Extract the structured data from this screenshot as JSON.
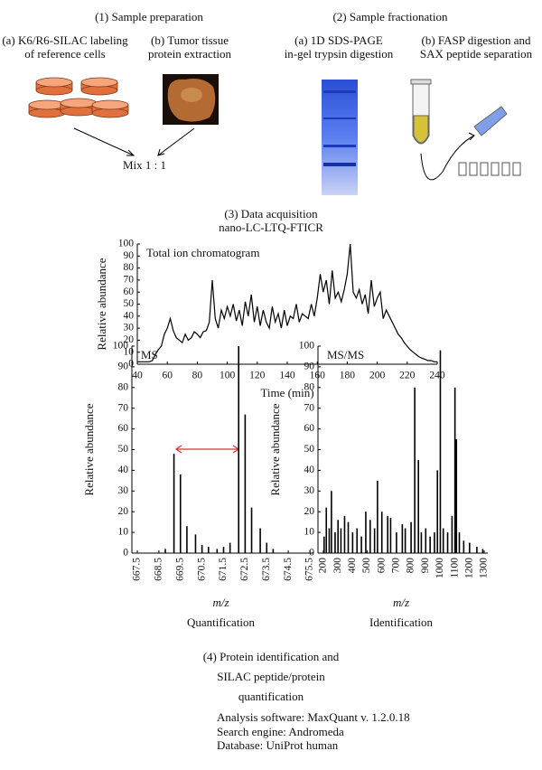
{
  "step1": {
    "title": "(1) Sample preparation",
    "a": [
      "(a) K6/R6-SILAC labeling",
      "of reference cells"
    ],
    "b": [
      "(b) Tumor tissue",
      "protein extraction"
    ],
    "mix": "Mix 1 : 1"
  },
  "step2": {
    "title": "(2) Sample fractionation",
    "a": [
      "(a) 1D SDS-PAGE",
      "in-gel trypsin digestion"
    ],
    "b": [
      "(b) FASP digestion and",
      "SAX peptide separation"
    ]
  },
  "step3": {
    "title": [
      "(3) Data acquisition",
      "nano-LC-LTQ-FTICR"
    ]
  },
  "step4": {
    "title": [
      "(4) Protein identification and",
      "SILAC peptide/protein",
      "quantification"
    ],
    "details": [
      "Analysis software: MaxQuant v. 1.2.0.18",
      "Search engine: Andromeda",
      "Database: UniProt human"
    ]
  },
  "chart_data": [
    {
      "type": "line",
      "annotation": "Total ion chromatogram",
      "xlabel": "Time (min)",
      "ylabel": "Relative abundance",
      "color": "#000000",
      "x": [
        40,
        42,
        44,
        46,
        48,
        50,
        52,
        54,
        56,
        58,
        60,
        62,
        64,
        66,
        68,
        70,
        72,
        74,
        76,
        78,
        80,
        82,
        84,
        86,
        88,
        90,
        92,
        94,
        96,
        98,
        100,
        102,
        104,
        106,
        108,
        110,
        112,
        114,
        116,
        118,
        120,
        122,
        124,
        126,
        128,
        130,
        132,
        134,
        136,
        138,
        140,
        142,
        144,
        146,
        148,
        150,
        152,
        154,
        156,
        158,
        160,
        162,
        164,
        166,
        168,
        170,
        172,
        174,
        176,
        178,
        180,
        182,
        184,
        186,
        188,
        190,
        192,
        194,
        196,
        198,
        200,
        202,
        204,
        206,
        208,
        210,
        212,
        214,
        216,
        218,
        220,
        222,
        224,
        226,
        228,
        230,
        232,
        234,
        236,
        238,
        240
      ],
      "values": [
        2,
        2,
        2,
        2,
        2,
        3,
        8,
        12,
        15,
        25,
        30,
        38,
        28,
        22,
        20,
        18,
        25,
        20,
        22,
        27,
        25,
        22,
        27,
        28,
        35,
        70,
        38,
        30,
        45,
        38,
        48,
        40,
        50,
        36,
        45,
        32,
        52,
        40,
        58,
        35,
        48,
        32,
        45,
        35,
        30,
        48,
        35,
        42,
        30,
        45,
        32,
        40,
        38,
        50,
        35,
        42,
        40,
        38,
        50,
        40,
        55,
        75,
        60,
        70,
        50,
        78,
        55,
        60,
        52,
        62,
        75,
        100,
        60,
        55,
        62,
        50,
        58,
        42,
        70,
        48,
        55,
        60,
        38,
        45,
        40,
        35,
        30,
        25,
        22,
        18,
        15,
        12,
        10,
        8,
        6,
        5,
        4,
        3,
        3,
        2,
        2
      ],
      "xlim": [
        40,
        240
      ],
      "xticks": [
        40,
        60,
        80,
        100,
        120,
        140,
        160,
        180,
        200,
        220,
        240
      ],
      "ylim": [
        0,
        100
      ],
      "yticks": [
        0,
        10,
        20,
        30,
        40,
        50,
        60,
        70,
        80,
        90,
        100
      ]
    },
    {
      "type": "stem",
      "annotation": "MS",
      "xlabel": "m/z",
      "caption": "Quantification",
      "ylabel": "Relative abundance",
      "color": "#000000",
      "x": [
        668.8,
        669.2,
        669.5,
        669.8,
        670.2,
        670.5,
        670.8,
        671.2,
        671.5,
        671.8,
        672.2,
        672.5,
        672.8,
        673.2,
        673.5,
        673.8
      ],
      "values": [
        2,
        48,
        38,
        13,
        9,
        4,
        3,
        2,
        3,
        5,
        100,
        67,
        22,
        12,
        5,
        2
      ],
      "xlim": [
        667.5,
        675.5
      ],
      "xticks": [
        667.5,
        668.5,
        669.5,
        670.5,
        671.5,
        672.5,
        673.5,
        674.5,
        675.5
      ],
      "ylim": [
        0,
        100
      ],
      "yticks": [
        0,
        10,
        20,
        30,
        40,
        50,
        60,
        70,
        80,
        90,
        100
      ]
    },
    {
      "type": "stem",
      "annotation": "MS/MS",
      "xlabel": "m/z",
      "caption": "Identification",
      "ylabel": "Relative abundance",
      "color": "#000000",
      "x": [
        205,
        220,
        240,
        255,
        280,
        300,
        320,
        345,
        370,
        400,
        430,
        460,
        490,
        520,
        550,
        570,
        600,
        640,
        660,
        700,
        740,
        760,
        800,
        825,
        850,
        870,
        900,
        930,
        960,
        980,
        1000,
        1020,
        1050,
        1080,
        1100,
        1110,
        1130,
        1160,
        1200,
        1250,
        1290
      ],
      "values": [
        8,
        22,
        12,
        30,
        10,
        16,
        12,
        18,
        15,
        10,
        12,
        8,
        20,
        16,
        12,
        35,
        20,
        18,
        17,
        10,
        14,
        12,
        15,
        80,
        45,
        10,
        12,
        8,
        10,
        40,
        98,
        12,
        10,
        18,
        80,
        55,
        10,
        6,
        5,
        3,
        2
      ],
      "xlim": [
        200,
        1300
      ],
      "xticks": [
        200,
        300,
        400,
        500,
        600,
        700,
        800,
        900,
        1000,
        1100,
        1200,
        1300
      ],
      "ylim": [
        0,
        100
      ],
      "yticks": [
        0,
        10,
        20,
        30,
        40,
        50,
        60,
        70,
        80,
        90,
        100
      ]
    }
  ]
}
